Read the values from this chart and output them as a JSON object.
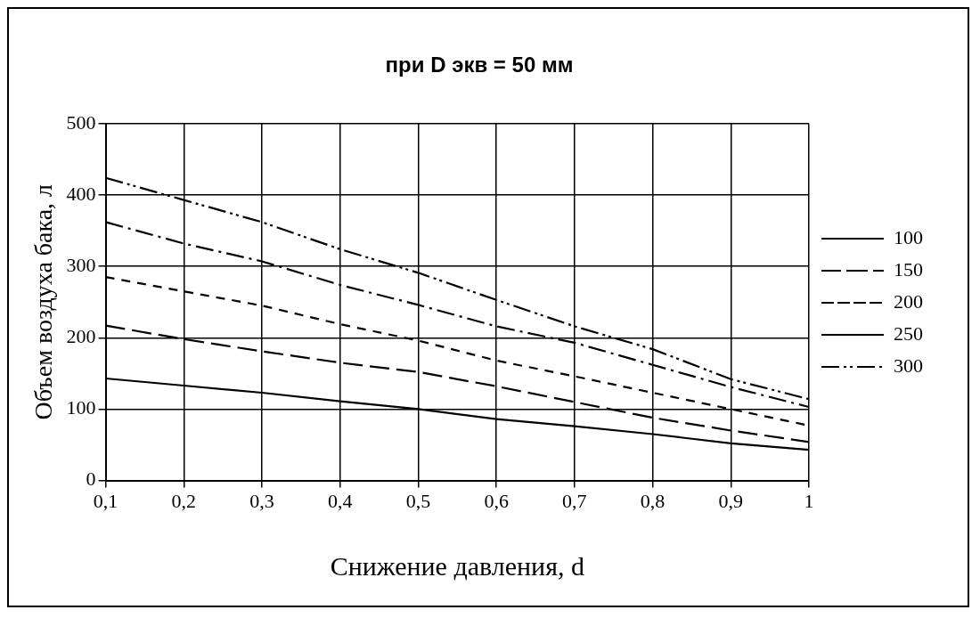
{
  "chart_data": {
    "type": "line",
    "title": "при D экв = 50 мм",
    "xlabel": "Снижение давления, d",
    "ylabel": "Объем воздуха бака, л",
    "x": [
      0.1,
      0.2,
      0.3,
      0.4,
      0.5,
      0.6,
      0.7,
      0.8,
      0.9,
      1
    ],
    "xlim": [
      0.1,
      1
    ],
    "xticks": [
      {
        "value": 0.1,
        "label": "0,1"
      },
      {
        "value": 0.2,
        "label": "0,2"
      },
      {
        "value": 0.3,
        "label": "0,3"
      },
      {
        "value": 0.4,
        "label": "0,4"
      },
      {
        "value": 0.5,
        "label": "0,5"
      },
      {
        "value": 0.6,
        "label": "0,6"
      },
      {
        "value": 0.7,
        "label": "0,7"
      },
      {
        "value": 0.8,
        "label": "0,8"
      },
      {
        "value": 0.9,
        "label": "0,9"
      },
      1
    ],
    "ylim": [
      0,
      500
    ],
    "yticks": [
      0,
      100,
      200,
      300,
      400,
      500
    ],
    "grid": true,
    "legend": "right",
    "marker": "none",
    "series": [
      {
        "name": "100",
        "color": "#000000",
        "line_style": "solid",
        "values": [
          143,
          133,
          123,
          111,
          100,
          86,
          76,
          65,
          52,
          43
        ]
      },
      {
        "name": "150",
        "color": "#000000",
        "line_style": "dashed",
        "values": [
          217,
          198,
          181,
          165,
          152,
          132,
          110,
          88,
          70,
          54
        ]
      },
      {
        "name": "200",
        "color": "#000000",
        "line_style": "dashed",
        "values": [
          285,
          265,
          245,
          219,
          196,
          168,
          146,
          123,
          100,
          77
        ]
      },
      {
        "name": "250",
        "color": "#000000",
        "line_style": "dashed",
        "values": [
          362,
          332,
          307,
          274,
          246,
          216,
          193,
          162,
          131,
          103
        ]
      },
      {
        "name": "300",
        "color": "#000000",
        "line_style": "dashed",
        "values": [
          424,
          393,
          362,
          324,
          291,
          253,
          216,
          184,
          142,
          114
        ]
      }
    ]
  }
}
